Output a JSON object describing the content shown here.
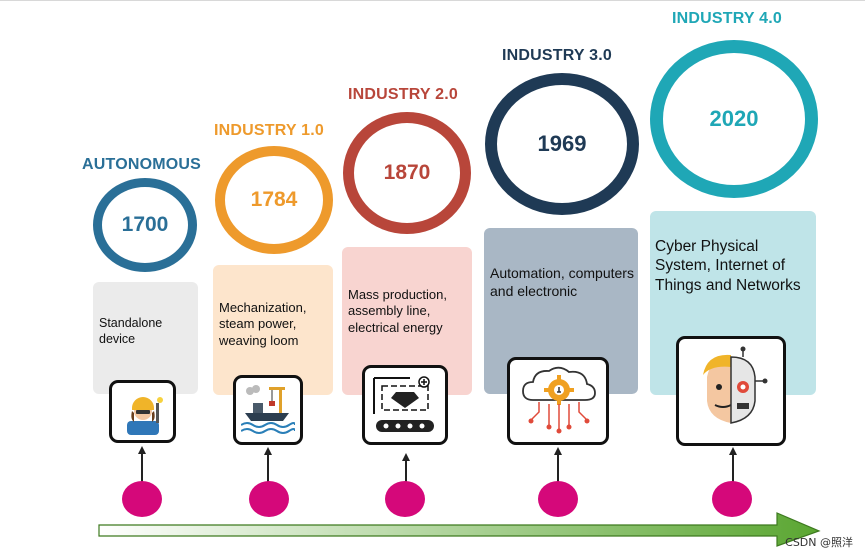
{
  "colors": {
    "autonomous": "#2a6f97",
    "industry1": "#ee9a2c",
    "industry2": "#b8463a",
    "industry3": "#1f3a55",
    "industry4": "#1fa7b6",
    "dot": "#d5087a",
    "arrow": "#5aa631"
  },
  "stages": [
    {
      "title": "AUTONOMOUS",
      "year": "1700",
      "description": "Standalone device",
      "icon": "worker-icon"
    },
    {
      "title": "INDUSTRY 1.0",
      "year": "1784",
      "description": "Mechanization, steam power, weaving loom",
      "icon": "steam-ship-crane-icon"
    },
    {
      "title": "INDUSTRY 2.0",
      "year": "1870",
      "description": "Mass production, assembly line, electrical energy",
      "icon": "assembly-line-icon"
    },
    {
      "title": "INDUSTRY 3.0",
      "year": "1969",
      "description": "Automation, computers and electronic",
      "icon": "cloud-gear-icon"
    },
    {
      "title": "INDUSTRY 4.0",
      "year": "2020",
      "description": "Cyber Physical System, Internet of Things and Networks",
      "icon": "human-robot-face-icon"
    }
  ],
  "watermark": "CSDN @照洋"
}
